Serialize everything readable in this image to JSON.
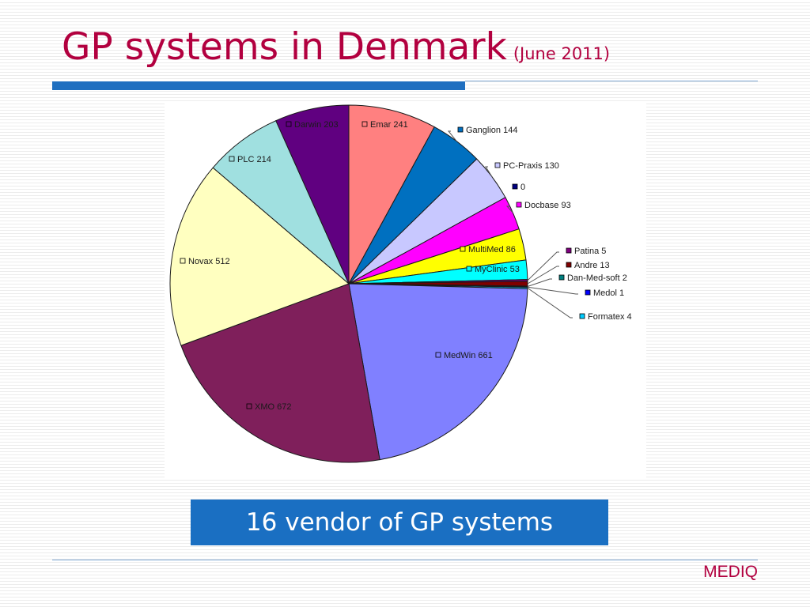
{
  "slide": {
    "title": "GP systems in Denmark",
    "subtitle": "(June 2011)",
    "caption": "16 vendor of GP systems",
    "brand": "MEDIQ"
  },
  "chart_data": {
    "type": "pie",
    "title": "",
    "slices": [
      {
        "name": "Emar",
        "value": 241,
        "label": "Emar 241",
        "color": "#ff8080"
      },
      {
        "name": "Ganglion",
        "value": 144,
        "label": "Ganglion 144",
        "color": "#0070c0"
      },
      {
        "name": "PC-Praxis",
        "value": 130,
        "label": "PC-Praxis 130",
        "color": "#c8c8ff"
      },
      {
        "name": "",
        "value": 0,
        "label": "0",
        "color": "#000080"
      },
      {
        "name": "Docbase",
        "value": 93,
        "label": "Docbase 93",
        "color": "#ff00ff"
      },
      {
        "name": "MultiMed",
        "value": 86,
        "label": "MultiMed 86",
        "color": "#ffff00"
      },
      {
        "name": "MyClinic",
        "value": 53,
        "label": "MyClinic 53",
        "color": "#00ffff"
      },
      {
        "name": "Patina",
        "value": 5,
        "label": "Patina 5",
        "color": "#800080"
      },
      {
        "name": "Andre",
        "value": 13,
        "label": "Andre 13",
        "color": "#800000"
      },
      {
        "name": "Dan-Med-soft",
        "value": 2,
        "label": "Dan-Med-soft 2",
        "color": "#008080"
      },
      {
        "name": "Medol",
        "value": 1,
        "label": "Medol 1",
        "color": "#0000ff"
      },
      {
        "name": "Formatex",
        "value": 4,
        "label": "Formatex 4",
        "color": "#00ccff"
      },
      {
        "name": "MedWin",
        "value": 661,
        "label": "MedWin 661",
        "color": "#8080ff"
      },
      {
        "name": "XMO",
        "value": 672,
        "label": "XMO 672",
        "color": "#7f1f5b"
      },
      {
        "name": "Novax",
        "value": 512,
        "label": "Novax 512",
        "color": "#ffffc0"
      },
      {
        "name": "PLC",
        "value": 214,
        "label": "PLC 214",
        "color": "#a0e0e0"
      },
      {
        "name": "Darwin",
        "value": 203,
        "label": "Darwin 203",
        "color": "#600080"
      }
    ]
  }
}
